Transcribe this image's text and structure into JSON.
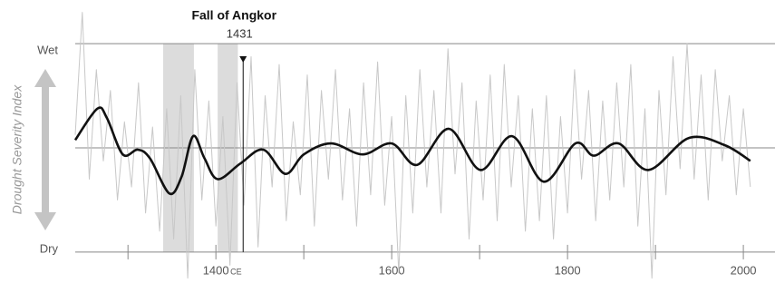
{
  "chart_data": {
    "type": "line",
    "y_label": "Drought Severity Index",
    "xlim": [
      1240,
      2036
    ],
    "ylim": [
      -5.5,
      5.5
    ],
    "xticks": [
      1400,
      1600,
      1800,
      2000
    ],
    "xminorticks": [
      1300,
      1500,
      1700,
      1900
    ],
    "x_unit": "CE",
    "yticks": [
      {
        "value": 4,
        "label": "Wet"
      },
      {
        "value": -4,
        "label": "Dry"
      }
    ],
    "annotation": {
      "label": "Fall of Angkor",
      "x": 1431
    },
    "shaded_ranges": [
      [
        1340,
        1375
      ],
      [
        1402,
        1425
      ]
    ],
    "series": [
      {
        "color": "#c8c8c8",
        "x": [
          1240,
          1248,
          1256,
          1264,
          1272,
          1280,
          1288,
          1296,
          1304,
          1312,
          1320,
          1328,
          1336,
          1344,
          1352,
          1360,
          1368,
          1376,
          1384,
          1392,
          1400,
          1408,
          1416,
          1424,
          1432,
          1440,
          1448,
          1456,
          1464,
          1472,
          1480,
          1488,
          1496,
          1504,
          1512,
          1520,
          1528,
          1536,
          1544,
          1552,
          1560,
          1568,
          1576,
          1584,
          1592,
          1600,
          1608,
          1616,
          1624,
          1632,
          1640,
          1648,
          1656,
          1664,
          1672,
          1680,
          1688,
          1696,
          1704,
          1712,
          1720,
          1728,
          1736,
          1744,
          1752,
          1760,
          1768,
          1776,
          1784,
          1792,
          1800,
          1808,
          1816,
          1824,
          1832,
          1840,
          1848,
          1856,
          1864,
          1872,
          1880,
          1888,
          1896,
          1904,
          1912,
          1920,
          1928,
          1936,
          1944,
          1952,
          1960,
          1968,
          1976,
          1984,
          1992,
          2000,
          2008
        ],
        "values": [
          0.5,
          5.2,
          -1.2,
          3.0,
          -0.5,
          2.2,
          -2.0,
          1.0,
          -1.5,
          2.5,
          -2.5,
          0.8,
          -3.2,
          1.5,
          -3.5,
          2.0,
          -5.0,
          3.0,
          -2.0,
          1.8,
          -3.0,
          1.2,
          -4.5,
          2.5,
          -2.2,
          3.5,
          -3.8,
          2.0,
          -1.5,
          3.2,
          -2.8,
          1.0,
          -1.8,
          2.8,
          -3.0,
          2.2,
          -1.2,
          3.0,
          -2.0,
          1.5,
          -3.0,
          2.5,
          -1.8,
          3.3,
          -2.2,
          1.2,
          -4.8,
          2.0,
          -2.5,
          3.0,
          -1.5,
          2.2,
          -2.5,
          3.8,
          -1.0,
          2.5,
          -3.5,
          1.8,
          -2.0,
          2.8,
          -2.8,
          3.2,
          -1.5,
          2.0,
          -3.2,
          1.5,
          -2.8,
          2.0,
          -3.5,
          1.2,
          -2.5,
          3.0,
          -1.2,
          2.2,
          -2.8,
          1.8,
          -2.0,
          2.5,
          -1.5,
          3.2,
          -3.0,
          1.5,
          -5.0,
          2.2,
          -1.8,
          3.5,
          -0.8,
          4.0,
          -1.2,
          2.8,
          -2.0,
          3.0,
          -0.5,
          2.0,
          -1.8,
          1.5,
          -1.5
        ]
      },
      {
        "color": "#111111",
        "x": [
          1240,
          1265,
          1276,
          1294,
          1311,
          1325,
          1347,
          1361,
          1374,
          1387,
          1402,
          1428,
          1454,
          1479,
          1500,
          1531,
          1567,
          1600,
          1629,
          1665,
          1701,
          1737,
          1773,
          1809,
          1830,
          1858,
          1892,
          1938,
          1979,
          2008
        ],
        "values": [
          0.3,
          1.5,
          1.15,
          -0.25,
          -0.07,
          -0.4,
          -1.75,
          -1.1,
          0.45,
          -0.4,
          -1.2,
          -0.6,
          -0.07,
          -1.0,
          -0.25,
          0.17,
          -0.25,
          0.17,
          -0.65,
          0.73,
          -0.85,
          0.45,
          -1.3,
          0.17,
          -0.3,
          0.17,
          -0.85,
          0.38,
          0.1,
          -0.5
        ]
      }
    ]
  }
}
